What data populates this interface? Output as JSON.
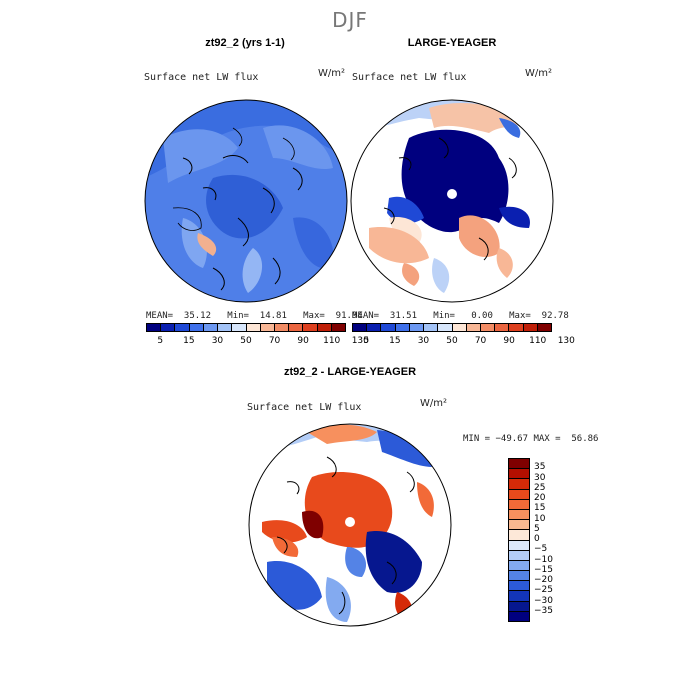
{
  "season": "DJF",
  "panels": {
    "left": {
      "title": "zt92_2 (yrs 1-1)",
      "field": "Surface net LW flux",
      "units": "W/m²",
      "stats": "MEAN=  35.12   Min=  14.81   Max=  91.94"
    },
    "right": {
      "title": "LARGE-YEAGER",
      "field": "Surface net LW flux",
      "units": "W/m²",
      "stats": "MEAN=  31.51   Min=   0.00   Max=  92.78"
    },
    "diff": {
      "title": "zt92_2 - LARGE-YEAGER",
      "field": "Surface net LW flux",
      "units": "W/m²",
      "stats": "MIN = −49.67 MAX =  56.86"
    }
  },
  "colorbar_top": {
    "colors": [
      "#00007f",
      "#0a1fb0",
      "#1f49d6",
      "#3f70ea",
      "#6c98f2",
      "#a3c3f7",
      "#d7e6fb",
      "#fde6d6",
      "#f8b796",
      "#f28c65",
      "#ea6540",
      "#dd3f1e",
      "#c01f08",
      "#7f0000"
    ],
    "labels": [
      "5",
      "15",
      "30",
      "50",
      "70",
      "90",
      "110",
      "130"
    ]
  },
  "colorbar_diff": {
    "colors": [
      "#7f0000",
      "#b30f00",
      "#d52a08",
      "#e84a1c",
      "#f26a38",
      "#f7905e",
      "#fab890",
      "#fde8d8",
      "#dde9fb",
      "#b3cdf7",
      "#83aaf0",
      "#5483e6",
      "#2c5ad8",
      "#1335b8",
      "#06178f",
      "#00007f"
    ],
    "labels": [
      "35",
      "30",
      "25",
      "20",
      "15",
      "10",
      "5",
      "0",
      "−5",
      "−10",
      "−15",
      "−20",
      "−25",
      "−30",
      "−35"
    ]
  }
}
